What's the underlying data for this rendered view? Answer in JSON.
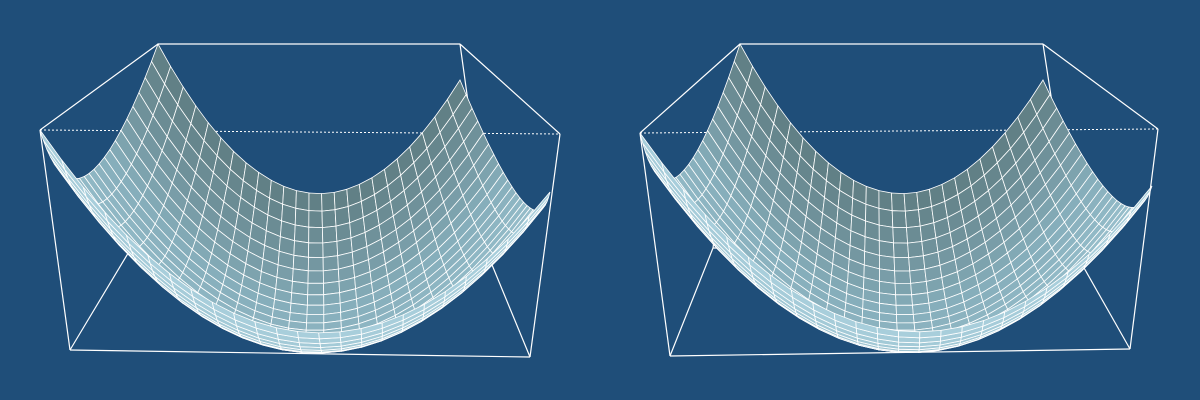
{
  "colors": {
    "background": "#1f4e79",
    "box_line": "#ffffff",
    "mesh_line": "#ffffff",
    "surface_back": "#5f7d83",
    "surface_front": "#a9cfdc",
    "surface_mid": "#86aebb"
  },
  "figure": {
    "description_type": "stereo-pair-saddle-surface",
    "panels": [
      {
        "id": "left",
        "shape": "saddle-surface",
        "grid_rows": 24,
        "grid_cols": 24
      },
      {
        "id": "right",
        "shape": "saddle-surface",
        "grid_rows": 24,
        "grid_cols": 24
      }
    ]
  }
}
